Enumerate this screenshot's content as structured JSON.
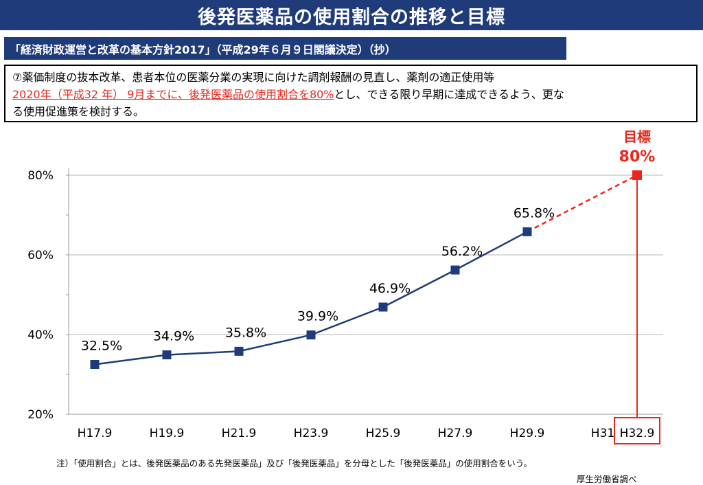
{
  "title": "後発医薬品の使用割合の推移と目標",
  "subtitle": "「経済財政運営と改革の基本方針2017」（平成29年６月９日閣議決定）（抄）",
  "policy": {
    "line1": "⑦薬価制度の抜本改革、患者本位の医薬分業の実現に向けた調剤報酬の見直し、薬剤の適正使用等",
    "line2_highlight": "2020年（平成32 年） 9月までに、後発医薬品の使用割合を80%",
    "line2_rest": "とし、できる限り早期に達成できるよう、更な",
    "line3": "る使用促進策を検討する。"
  },
  "note": "注）「使用割合」とは、後発医薬品のある先発医薬品」及び「後発医薬品」を分母とした「後発医薬品」の使用割合をいう。",
  "source": "厚生労働省調べ",
  "colors": {
    "navy": "#1f3b7a",
    "red": "#e8261c",
    "series": "#1f3b7a"
  },
  "chart_data": {
    "type": "line",
    "categories": [
      "H17.9",
      "H19.9",
      "H21.9",
      "H23.9",
      "H25.9",
      "H27.9",
      "H29.9",
      "H31",
      "H32.9"
    ],
    "series": [
      {
        "values": [
          32.5,
          34.9,
          35.8,
          39.9,
          46.9,
          56.2,
          65.8,
          null,
          null
        ],
        "labels": [
          "32.5%",
          "34.9%",
          "35.8%",
          "39.9%",
          "46.9%",
          "56.2%",
          "65.8%",
          "",
          ""
        ]
      }
    ],
    "target": {
      "category": "H32.9",
      "value": 80,
      "label_top": "目標",
      "label_value": "80%",
      "dashed_from": "H29.9"
    },
    "y_ticks": [
      20,
      40,
      60,
      80
    ],
    "y_tick_labels": [
      "20%",
      "40%",
      "60%",
      "80%"
    ],
    "ylim": [
      20,
      80
    ],
    "grid": true,
    "title": "",
    "xlabel": "",
    "ylabel": ""
  }
}
